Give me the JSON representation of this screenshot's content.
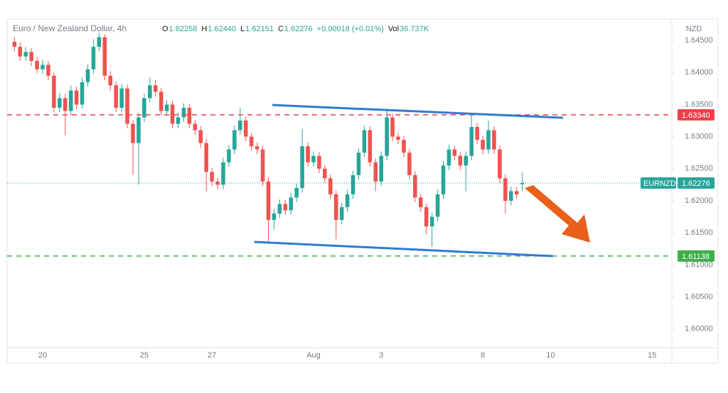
{
  "chart_data": {
    "type": "candlestick",
    "title": "Euro / New Zealand Dollar, 4h",
    "ohlc_labels": [
      {
        "key": "O",
        "text": "1.62258"
      },
      {
        "key": "H",
        "text": "1.62440"
      },
      {
        "key": "L",
        "text": "1.62151"
      },
      {
        "key": "C",
        "text": "1.62276"
      },
      {
        "key": "",
        "text": "+0.00018 (+0.01%)"
      },
      {
        "key": "Vol",
        "text": "36.737K"
      }
    ],
    "currency": "NZD",
    "symbol": "EURNZD",
    "up_color": "#26a69a",
    "down_color": "#ef5350",
    "x": [
      -5,
      -4,
      -3,
      -2,
      -1,
      0,
      1,
      2,
      3,
      4,
      5,
      6,
      7,
      8,
      9,
      10,
      11,
      12,
      13,
      14,
      15,
      16,
      17,
      18,
      19,
      20,
      21,
      22,
      23,
      24,
      25,
      26,
      27,
      28,
      29,
      30,
      31,
      32,
      33,
      34,
      35,
      36,
      37,
      38,
      39,
      40,
      41,
      42,
      43,
      44,
      45,
      46,
      47,
      48,
      49,
      50,
      51,
      52,
      53,
      54,
      55,
      56,
      57,
      58,
      59,
      60,
      61,
      62,
      63,
      64,
      65,
      66,
      67,
      68,
      69,
      70,
      71,
      72,
      73,
      74,
      75,
      76,
      77,
      78,
      79,
      80,
      81,
      82,
      83,
      84,
      85
    ],
    "open": [
      1.6448,
      1.644,
      1.6425,
      1.6432,
      1.6418,
      1.6405,
      1.6412,
      1.6395,
      1.6345,
      1.636,
      1.634,
      1.6372,
      1.635,
      1.6385,
      1.6405,
      1.644,
      1.6455,
      1.6395,
      1.638,
      1.6345,
      1.6375,
      1.632,
      1.629,
      1.633,
      1.636,
      1.638,
      1.637,
      1.634,
      1.635,
      1.632,
      1.633,
      1.6345,
      1.632,
      1.631,
      1.629,
      1.6245,
      1.623,
      1.6225,
      1.626,
      1.628,
      1.631,
      1.6325,
      1.63,
      1.6285,
      1.628,
      1.623,
      1.617,
      1.618,
      1.6195,
      1.6185,
      1.6205,
      1.622,
      1.6285,
      1.626,
      1.627,
      1.625,
      1.6235,
      1.621,
      1.617,
      1.619,
      1.621,
      1.624,
      1.6275,
      1.631,
      1.626,
      1.623,
      1.627,
      1.633,
      1.63,
      1.6295,
      1.6275,
      1.624,
      1.6205,
      1.619,
      1.616,
      1.6175,
      1.621,
      1.6255,
      1.628,
      1.627,
      1.6255,
      1.627,
      1.6315,
      1.6295,
      1.628,
      1.631,
      1.628,
      1.6235,
      1.62,
      1.6215,
      1.62258
    ],
    "high": [
      1.6455,
      1.6447,
      1.644,
      1.6438,
      1.6424,
      1.642,
      1.6418,
      1.64,
      1.6368,
      1.6366,
      1.638,
      1.6378,
      1.6392,
      1.6412,
      1.6452,
      1.6462,
      1.646,
      1.6402,
      1.6386,
      1.6382,
      1.6381,
      1.6326,
      1.6337,
      1.6367,
      1.6392,
      1.6388,
      1.6376,
      1.6357,
      1.6356,
      1.6337,
      1.6352,
      1.6351,
      1.6326,
      1.6316,
      1.6296,
      1.6251,
      1.6236,
      1.6267,
      1.6287,
      1.6317,
      1.6345,
      1.6331,
      1.6306,
      1.6291,
      1.6286,
      1.6236,
      1.6187,
      1.6202,
      1.6201,
      1.6212,
      1.6227,
      1.6312,
      1.6291,
      1.6277,
      1.6276,
      1.6256,
      1.6241,
      1.6216,
      1.6197,
      1.6217,
      1.6247,
      1.6282,
      1.6317,
      1.6316,
      1.6266,
      1.6277,
      1.634,
      1.6336,
      1.6306,
      1.6301,
      1.6281,
      1.6246,
      1.6211,
      1.6196,
      1.6182,
      1.6217,
      1.6262,
      1.6287,
      1.6286,
      1.6276,
      1.6277,
      1.6335,
      1.6321,
      1.6301,
      1.6325,
      1.6316,
      1.6286,
      1.6241,
      1.6222,
      1.6221,
      1.6244
    ],
    "low": [
      1.6433,
      1.6418,
      1.6418,
      1.641,
      1.6399,
      1.6398,
      1.6388,
      1.6338,
      1.6338,
      1.6302,
      1.6333,
      1.6343,
      1.6344,
      1.6378,
      1.6398,
      1.6433,
      1.6388,
      1.6372,
      1.6338,
      1.6338,
      1.6313,
      1.624,
      1.6225,
      1.6323,
      1.6353,
      1.6362,
      1.6333,
      1.6333,
      1.6313,
      1.6313,
      1.6323,
      1.6313,
      1.6303,
      1.6283,
      1.6215,
      1.6223,
      1.6218,
      1.6218,
      1.6253,
      1.6273,
      1.6303,
      1.6293,
      1.6278,
      1.6273,
      1.6223,
      1.6137,
      1.6155,
      1.6173,
      1.6178,
      1.6178,
      1.6198,
      1.6213,
      1.6253,
      1.6253,
      1.6243,
      1.6228,
      1.6203,
      1.614,
      1.6163,
      1.6183,
      1.6203,
      1.6233,
      1.6268,
      1.6253,
      1.6215,
      1.6223,
      1.6263,
      1.6293,
      1.6288,
      1.6268,
      1.6233,
      1.6198,
      1.6183,
      1.6148,
      1.6128,
      1.6168,
      1.6203,
      1.6248,
      1.6263,
      1.6248,
      1.6215,
      1.6263,
      1.6288,
      1.6273,
      1.6273,
      1.6273,
      1.6228,
      1.618,
      1.6193,
      1.6203,
      1.62151
    ],
    "close": [
      1.644,
      1.6425,
      1.6432,
      1.6418,
      1.6405,
      1.6412,
      1.6395,
      1.6345,
      1.636,
      1.634,
      1.6372,
      1.635,
      1.6385,
      1.6405,
      1.644,
      1.6455,
      1.6395,
      1.638,
      1.6345,
      1.6375,
      1.632,
      1.629,
      1.633,
      1.636,
      1.638,
      1.637,
      1.634,
      1.635,
      1.632,
      1.633,
      1.6345,
      1.632,
      1.631,
      1.629,
      1.6245,
      1.623,
      1.6225,
      1.626,
      1.628,
      1.631,
      1.6325,
      1.63,
      1.6285,
      1.628,
      1.623,
      1.617,
      1.618,
      1.6195,
      1.6185,
      1.6205,
      1.622,
      1.6285,
      1.626,
      1.627,
      1.625,
      1.6235,
      1.621,
      1.617,
      1.619,
      1.621,
      1.624,
      1.6275,
      1.631,
      1.626,
      1.623,
      1.627,
      1.633,
      1.63,
      1.6295,
      1.6275,
      1.624,
      1.6205,
      1.619,
      1.616,
      1.6175,
      1.621,
      1.6255,
      1.628,
      1.627,
      1.6255,
      1.627,
      1.6315,
      1.6295,
      1.628,
      1.631,
      1.628,
      1.6235,
      1.62,
      1.6215,
      1.621,
      1.62276
    ],
    "xlim": [
      -6.3,
      111.5
    ],
    "xticks": [
      {
        "value": 0,
        "label": "20"
      },
      {
        "value": 18,
        "label": "25"
      },
      {
        "value": 30,
        "label": "27"
      },
      {
        "value": 48,
        "label": "Aug"
      },
      {
        "value": 60,
        "label": "3"
      },
      {
        "value": 78,
        "label": "8"
      },
      {
        "value": 90,
        "label": "10"
      },
      {
        "value": 108,
        "label": "15"
      }
    ],
    "ylim": [
      1.5971,
      1.64832
    ],
    "yticks": [
      {
        "value": 1.6,
        "label": "1.60000"
      },
      {
        "value": 1.605,
        "label": "1.60500"
      },
      {
        "value": 1.61,
        "label": "1.61000"
      },
      {
        "value": 1.615,
        "label": "1.61500"
      },
      {
        "value": 1.62,
        "label": "1.62000"
      },
      {
        "value": 1.625,
        "label": "1.62500"
      },
      {
        "value": 1.63,
        "label": "1.63000"
      },
      {
        "value": 1.635,
        "label": "1.63500"
      },
      {
        "value": 1.64,
        "label": "1.64000"
      },
      {
        "value": 1.645,
        "label": "1.64500"
      }
    ],
    "last_price": {
      "value": 1.62276,
      "label": "1.62276",
      "color": "#26a69a"
    },
    "levels": [
      {
        "value": 1.6334,
        "label": "1.63340",
        "color": "#ef3f4a"
      },
      {
        "value": 1.61138,
        "label": "1.61138",
        "color": "#3fae49"
      }
    ],
    "trend_lines": [
      {
        "x": [
          40.7,
          92.2
        ],
        "y": [
          1.63493,
          1.63294
        ],
        "color": "#2f7bd1"
      },
      {
        "x": [
          37.5,
          90.4
        ],
        "y": [
          1.61358,
          1.61137
        ],
        "color": "#2f7bd1"
      }
    ]
  }
}
